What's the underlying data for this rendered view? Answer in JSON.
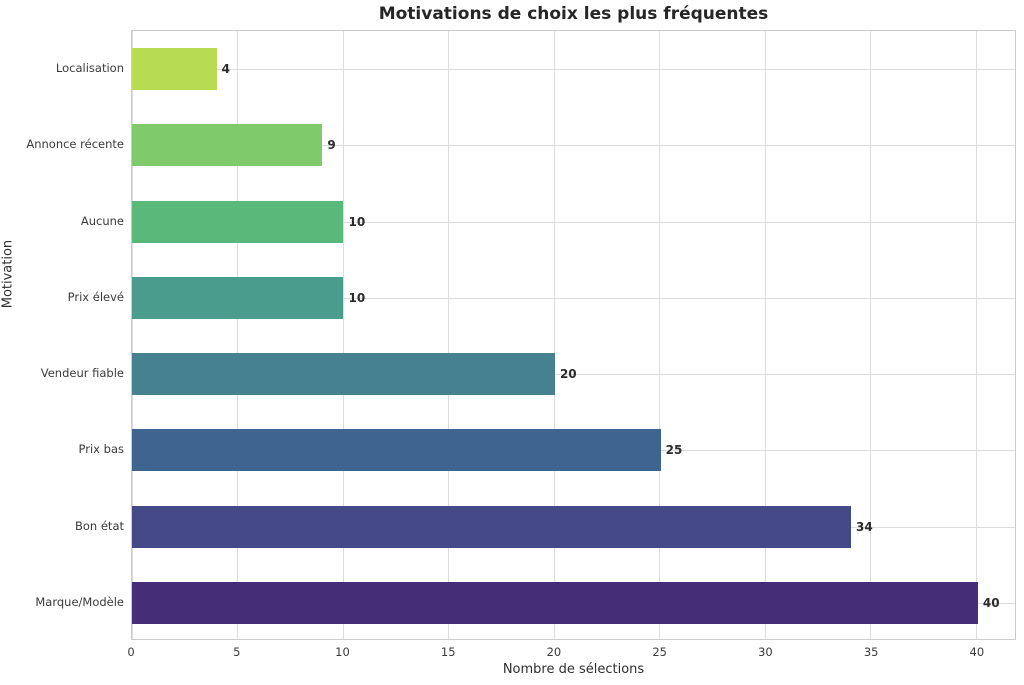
{
  "chart_data": {
    "type": "bar",
    "orientation": "horizontal",
    "title": "Motivations de choix les plus fréquentes",
    "xlabel": "Nombre de sélections",
    "ylabel": "Motivation",
    "categories": [
      "Localisation",
      "Annonce récente",
      "Aucune",
      "Prix élevé",
      "Vendeur fiable",
      "Prix bas",
      "Bon état",
      "Marque/Modèle"
    ],
    "values": [
      4,
      9,
      10,
      10,
      20,
      25,
      34,
      40
    ],
    "value_labels": [
      "4",
      "9",
      "10",
      "10",
      "20",
      "25",
      "34",
      "40"
    ],
    "colors": [
      "#b8dc51",
      "#7fca6a",
      "#5bb87b",
      "#4a9c8c",
      "#45818e",
      "#3d6590",
      "#434a85",
      "#462d78"
    ],
    "x_ticks": [
      0,
      5,
      10,
      15,
      20,
      25,
      30,
      35,
      40
    ],
    "x_tick_labels": [
      "0",
      "5",
      "10",
      "15",
      "20",
      "25",
      "30",
      "35",
      "40"
    ],
    "xlim": [
      0,
      41.85
    ],
    "grid": true,
    "legend_position": "none",
    "styles": {
      "grid_color": "#dcdcdc",
      "spine_color": "#cccccc",
      "title_color": "#262626",
      "tick_color": "#3b3b3b",
      "value_label_color": "#2b2b2b"
    }
  }
}
